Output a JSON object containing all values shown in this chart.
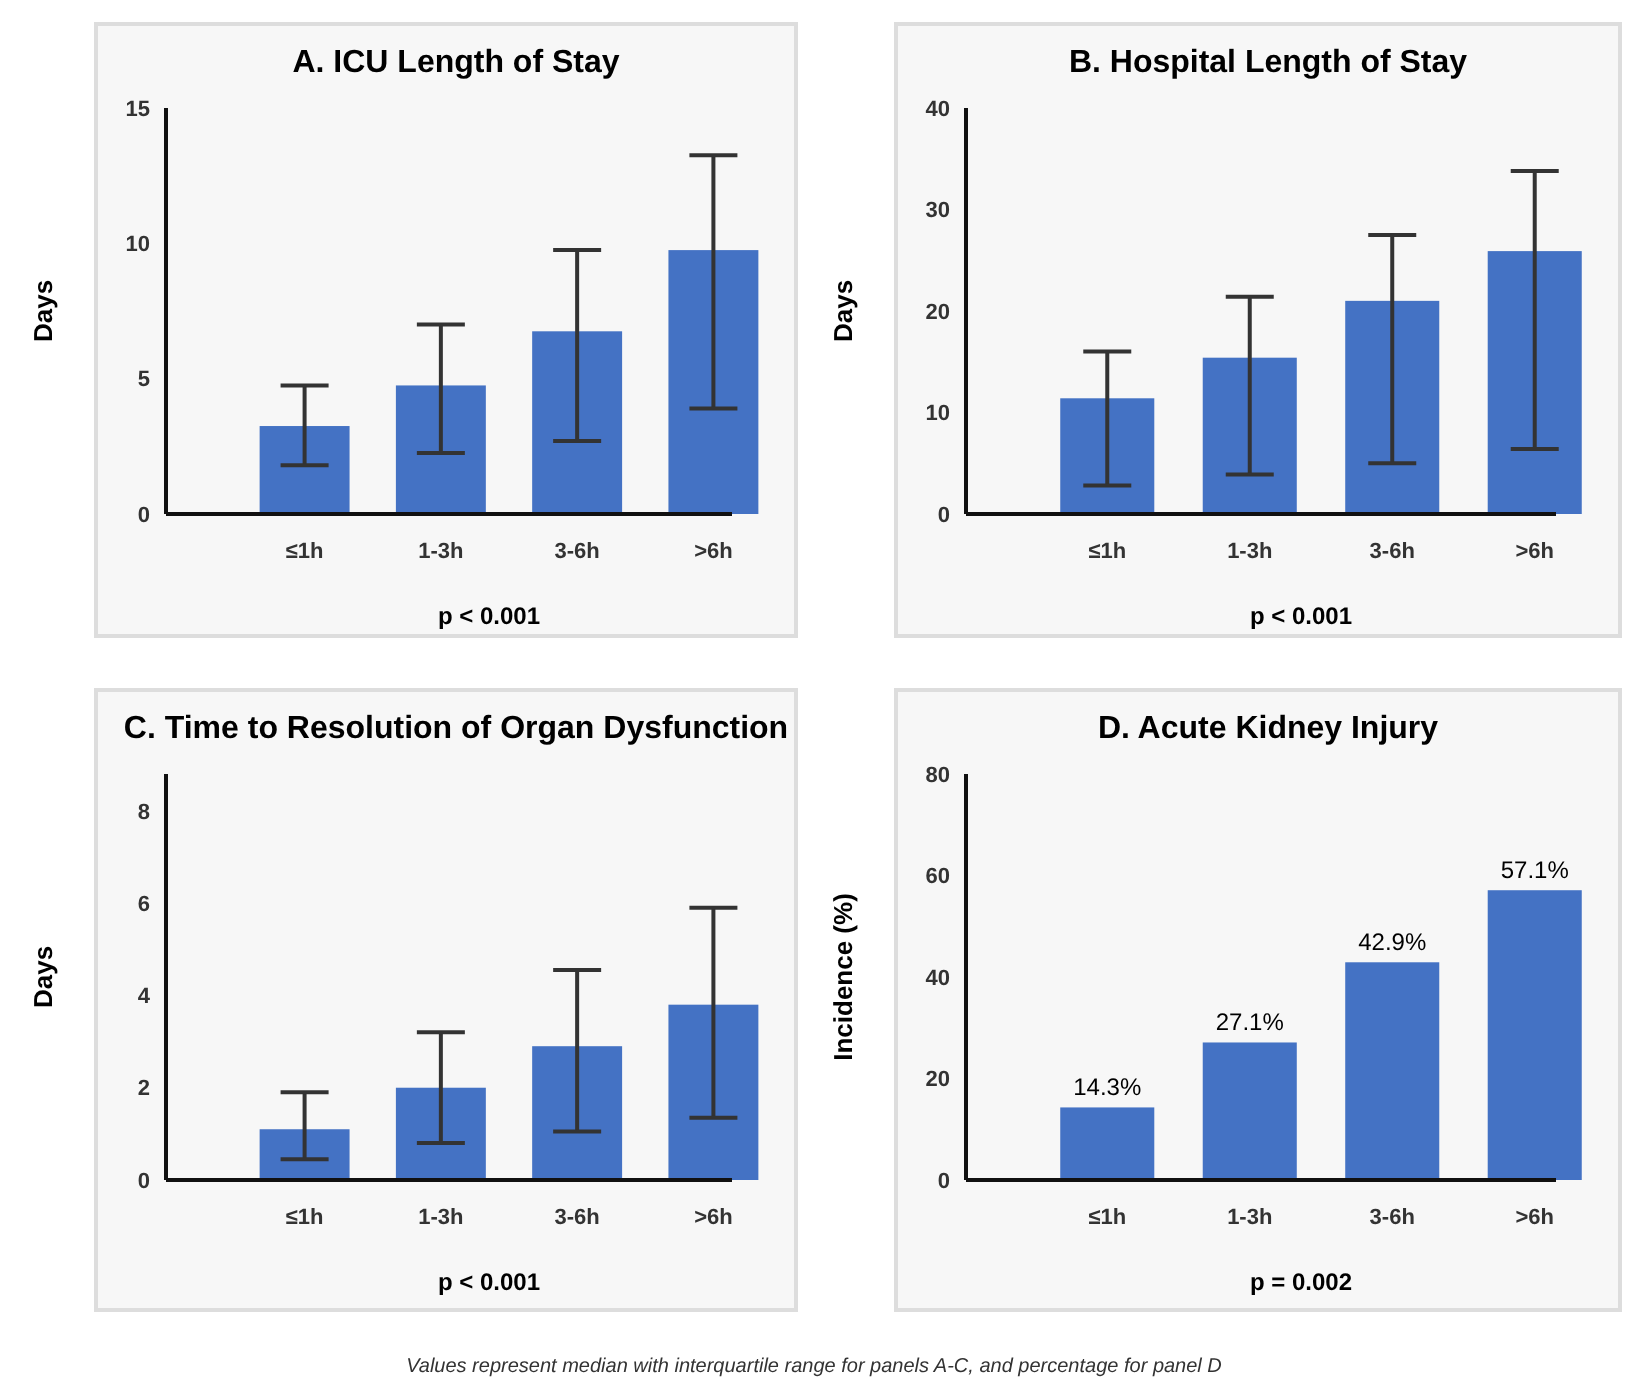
{
  "chart_data": [
    {
      "type": "bar",
      "title": "A. ICU Length of Stay",
      "ylabel": "Days",
      "categories": [
        "≤1h",
        "1-3h",
        "3-6h",
        ">6h"
      ],
      "values": [
        3.25,
        4.75,
        6.75,
        9.75
      ],
      "errors": [
        [
          1.8,
          4.75
        ],
        [
          2.25,
          7.0
        ],
        [
          2.7,
          9.75
        ],
        [
          3.9,
          13.25
        ]
      ],
      "color": "#4472c4",
      "ylim": [
        0,
        15
      ],
      "yticks": [
        0,
        5,
        10,
        15
      ],
      "grid": false,
      "annotations": [
        "p < 0.001"
      ]
    },
    {
      "type": "bar",
      "title": "B. Hospital Length of Stay",
      "ylabel": "Days",
      "categories": [
        "≤1h",
        "1-3h",
        "3-6h",
        ">6h"
      ],
      "values": [
        11.4,
        15.4,
        21,
        25.9
      ],
      "errors": [
        [
          2.8,
          16
        ],
        [
          3.9,
          21.4
        ],
        [
          5,
          27.5
        ],
        [
          6.4,
          33.8
        ]
      ],
      "color": "#4472c4",
      "ylim": [
        0,
        40
      ],
      "yticks": [
        0,
        10,
        20,
        30,
        40
      ],
      "grid": false,
      "annotations": [
        "p < 0.001"
      ]
    },
    {
      "type": "bar",
      "title": "C. Time to Resolution of Organ Dysfunction",
      "ylabel": "Days",
      "categories": [
        "≤1h",
        "1-3h",
        "3-6h",
        ">6h"
      ],
      "values": [
        1.1,
        2.0,
        2.9,
        3.8
      ],
      "errors": [
        [
          0.45,
          1.9
        ],
        [
          0.8,
          3.2
        ],
        [
          1.05,
          4.55
        ],
        [
          1.35,
          5.9
        ]
      ],
      "color": "#4472c4",
      "ylim": [
        0,
        8.8
      ],
      "yticks": [
        0,
        2,
        4,
        6,
        8
      ],
      "grid": false,
      "annotations": [
        "p < 0.001"
      ]
    },
    {
      "type": "bar",
      "title": "D. Acute Kidney Injury",
      "ylabel": "Incidence (%)",
      "categories": [
        "≤1h",
        "1-3h",
        "3-6h",
        ">6h"
      ],
      "values": [
        14.3,
        27.1,
        42.9,
        57.1
      ],
      "value_labels": [
        "14.3%",
        "27.1%",
        "42.9%",
        "57.1%"
      ],
      "color": "#4472c4",
      "ylim": [
        0,
        80
      ],
      "yticks": [
        0,
        20,
        40,
        60,
        80
      ],
      "grid": false,
      "annotations": [
        "p = 0.002",
        "Values represent median with interquartile range for panels A-C, and percentage for panel D"
      ]
    }
  ]
}
